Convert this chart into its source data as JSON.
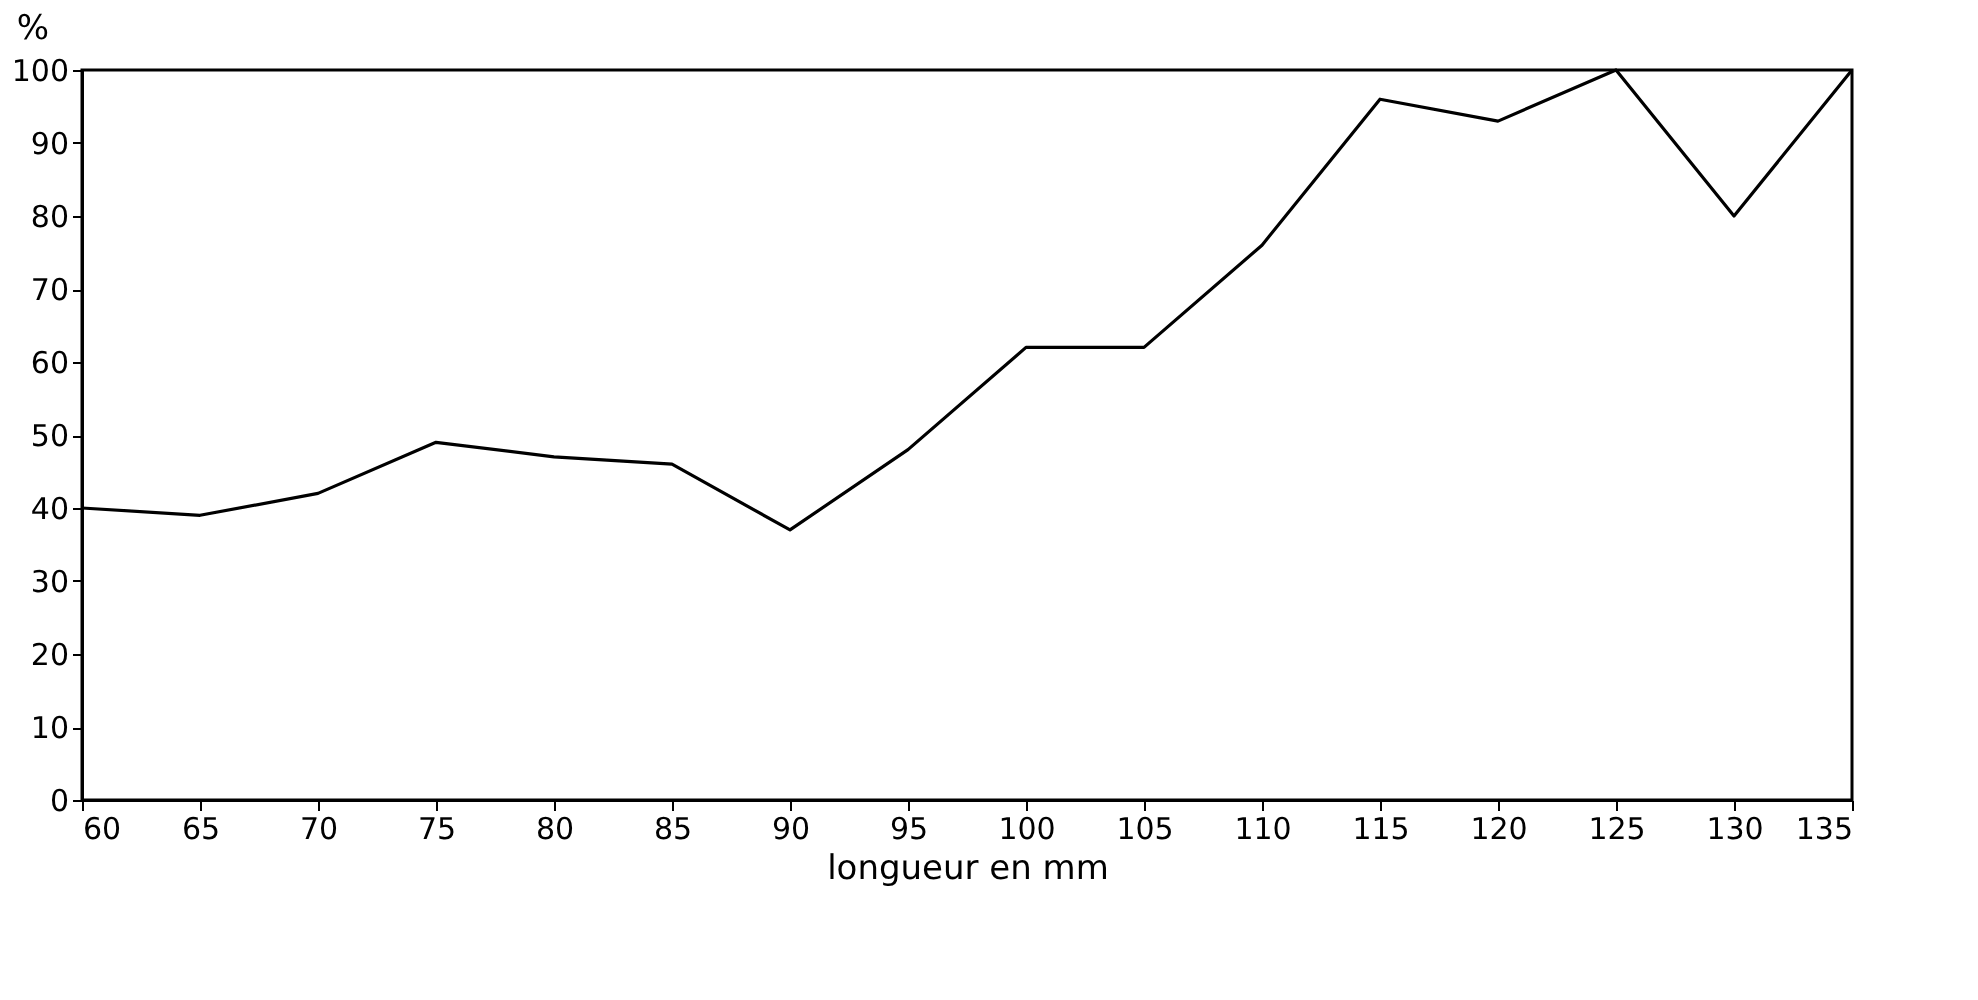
{
  "chart_data": {
    "type": "line",
    "xlabel": "longueur en mm",
    "ylabel": "%",
    "x": [
      60,
      65,
      70,
      75,
      80,
      85,
      90,
      95,
      100,
      105,
      110,
      115,
      120,
      125,
      130,
      135
    ],
    "series": [
      {
        "color": "#000000",
        "values": [
          40,
          39,
          42,
          49,
          47,
          46,
          37,
          48,
          62,
          62,
          76,
          96,
          93,
          100,
          80,
          100
        ]
      }
    ],
    "xlim": [
      60,
      135
    ],
    "xticks": [
      60,
      65,
      70,
      75,
      80,
      85,
      90,
      95,
      100,
      105,
      110,
      115,
      120,
      125,
      130,
      135
    ],
    "ylim": [
      0,
      100
    ],
    "yticks": [
      0,
      10,
      20,
      30,
      40,
      50,
      60,
      70,
      80,
      90,
      100
    ],
    "grid": false,
    "marker": "none",
    "line_style": "solid"
  }
}
